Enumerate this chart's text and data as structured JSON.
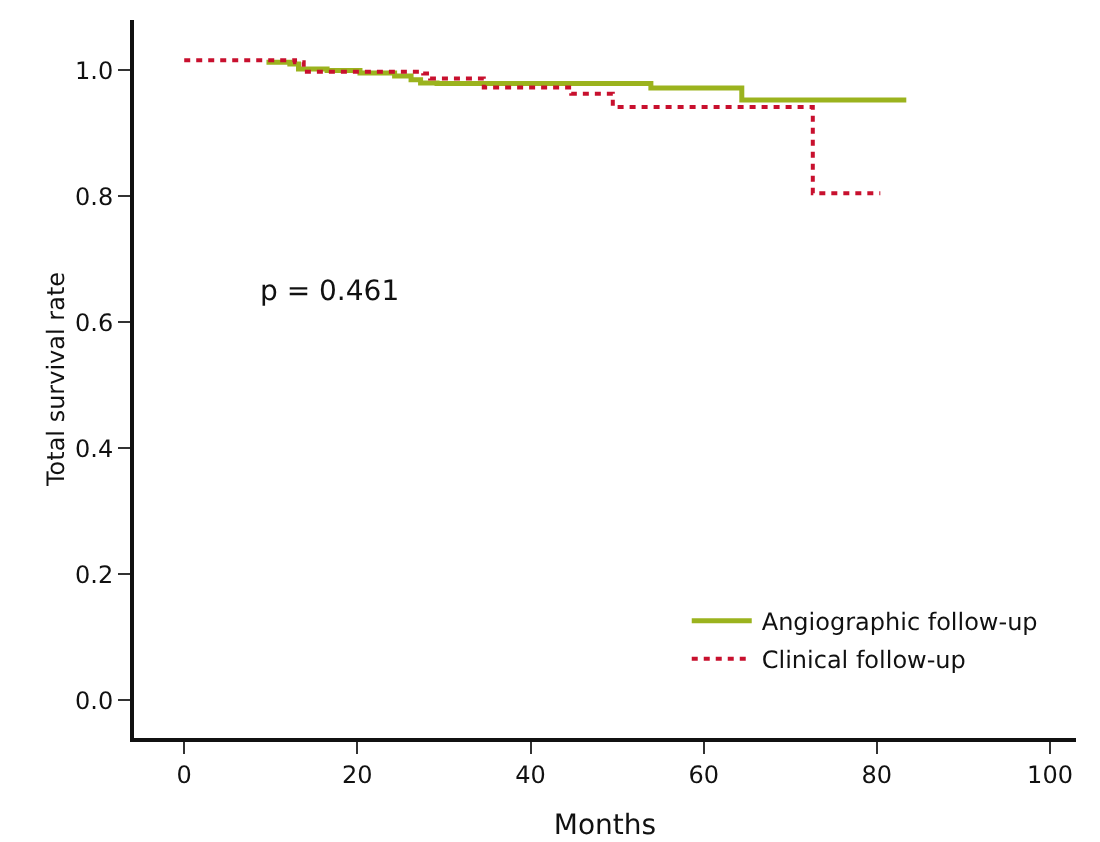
{
  "chart_data": {
    "type": "step",
    "xlabel": "Months",
    "ylabel": "Total survival rate",
    "xlim": [
      -5.8,
      103
    ],
    "xticks": [
      0,
      20,
      40,
      60,
      80,
      100
    ],
    "ylim": [
      -0.06,
      1.08
    ],
    "yticks": [
      {
        "value": 0,
        "label": "0.0"
      },
      0.2,
      0.4,
      0.6,
      0.8,
      {
        "value": 1,
        "label": "1.0"
      }
    ],
    "grid": false,
    "legend": "bottom right",
    "marker": "none",
    "annotations": [
      "p = 0.461"
    ],
    "series": [
      {
        "name": "Angiographic follow-up",
        "color": "#9bb31e",
        "line_style": "solid",
        "x": [
          9.5,
          12.2,
          13.2,
          16.5,
          20.3,
          24.3,
          26.2,
          27.3,
          29.2,
          53.9,
          64.4,
          83.4
        ],
        "values": [
          1.013,
          1.01,
          1.002,
          1.0,
          0.996,
          0.991,
          0.985,
          0.98,
          0.979,
          0.972,
          0.953,
          0.953
        ]
      },
      {
        "name": "Clinical follow-up",
        "color": "#c8102e",
        "line_style": "dotted",
        "x": [
          0,
          12.8,
          13.8,
          27.6,
          28.4,
          34.6,
          44.7,
          49.5,
          72.6,
          80.4
        ],
        "values": [
          1.016,
          1.013,
          0.998,
          0.995,
          0.987,
          0.973,
          0.963,
          0.942,
          0.805,
          0.805
        ]
      }
    ]
  }
}
